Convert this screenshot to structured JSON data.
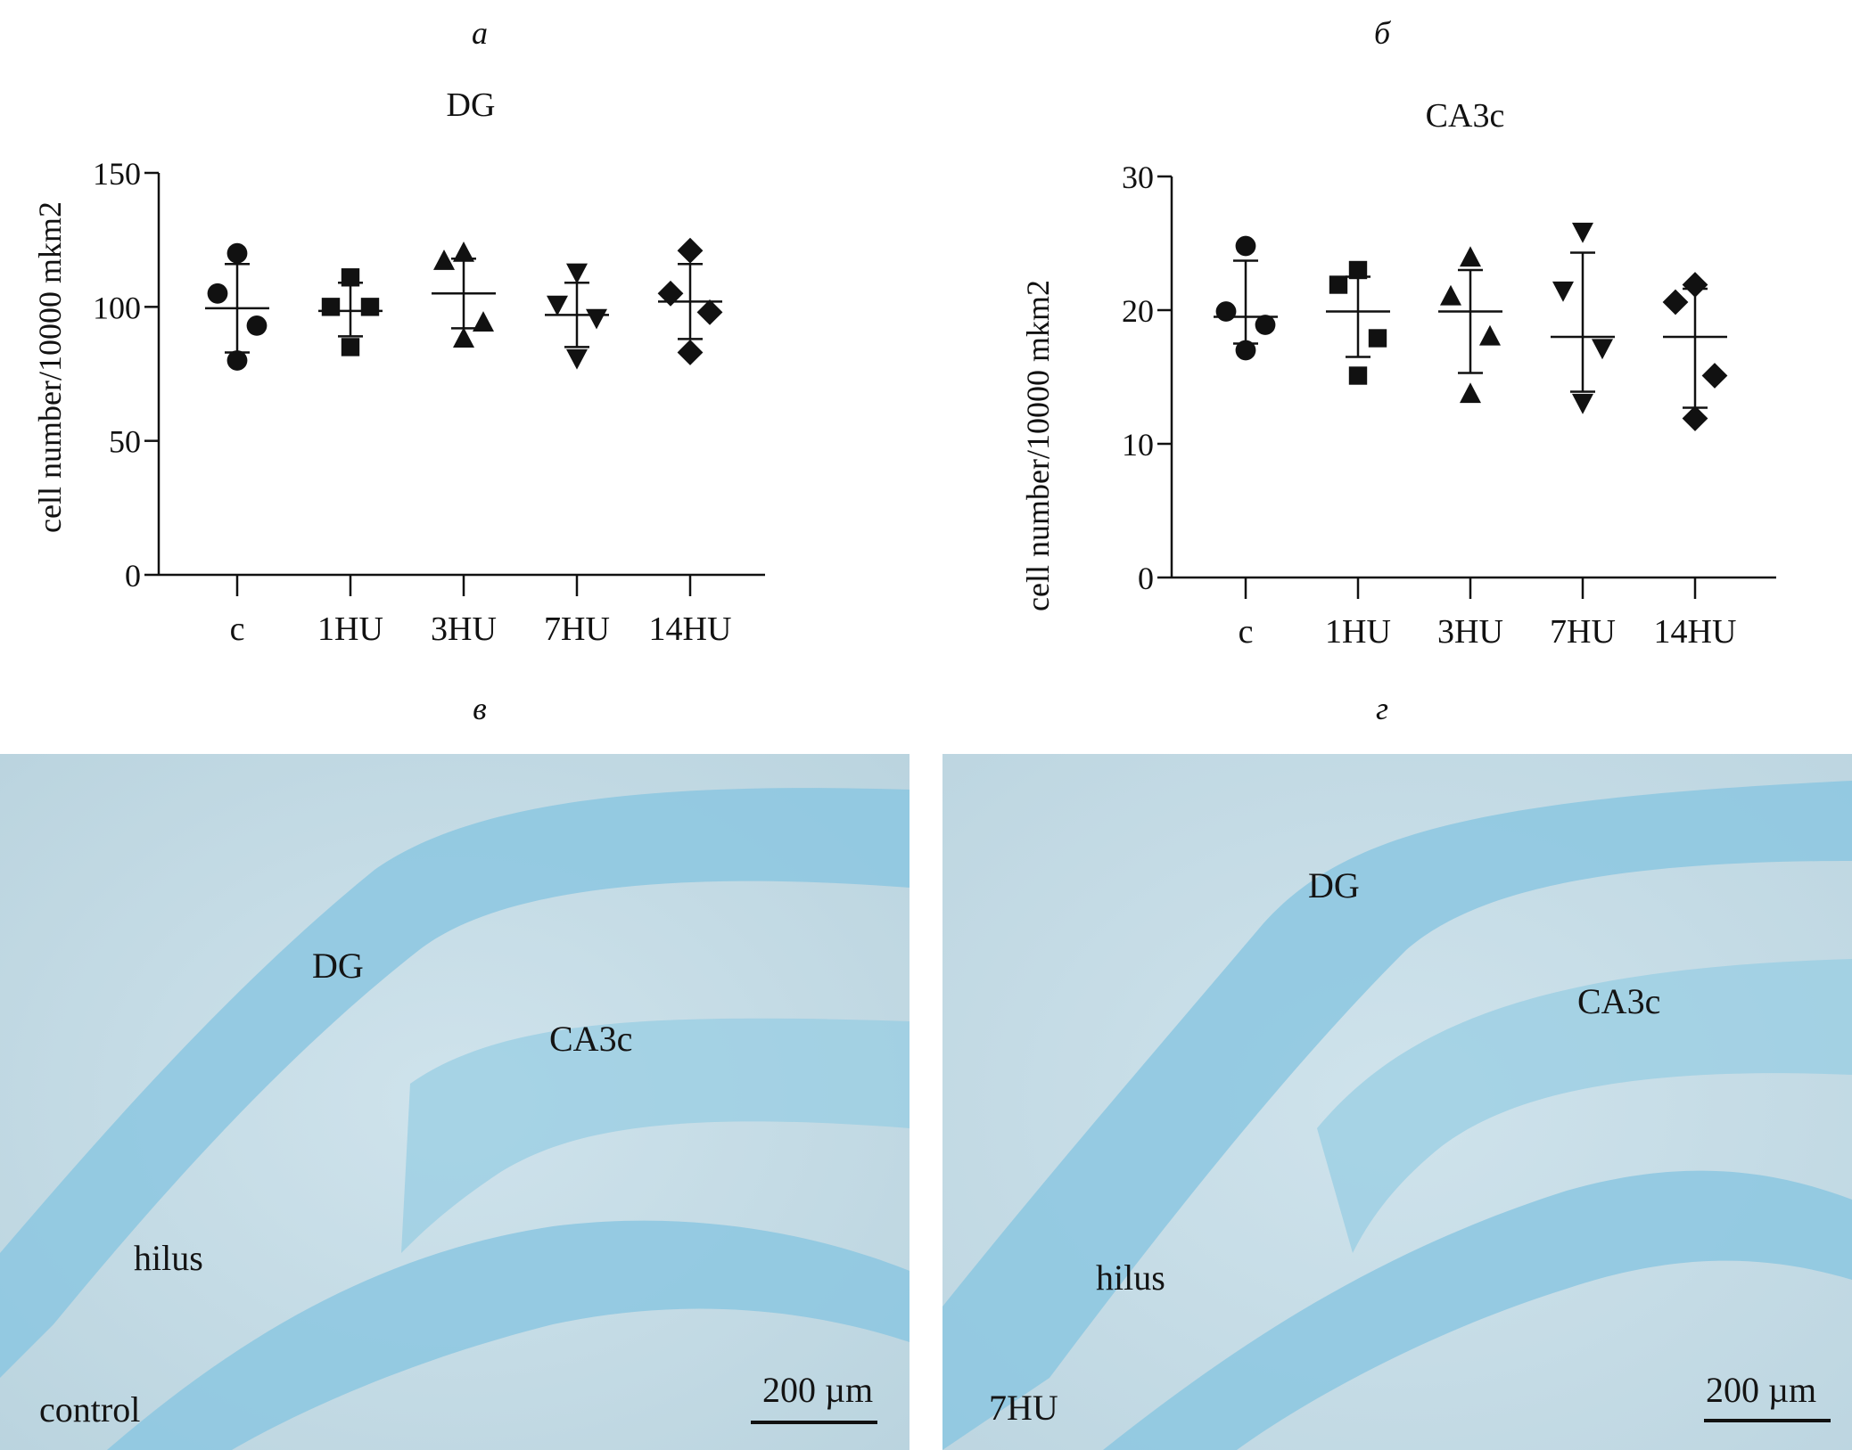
{
  "panel_letters": {
    "a": "а",
    "b": "б",
    "c": "в",
    "d": "г"
  },
  "chart_data": [
    {
      "type": "scatter",
      "title": "DG",
      "ylabel": "cell number/10000 mkm2",
      "xlabel": "",
      "categories": [
        "c",
        "1HU",
        "3HU",
        "7HU",
        "14HU"
      ],
      "ylim": [
        0,
        150
      ],
      "yticks": [
        0,
        50,
        100,
        150
      ],
      "grid": false,
      "markers": [
        "circle",
        "square",
        "triangle-up",
        "triangle-down",
        "diamond"
      ],
      "groups": [
        {
          "category": "c",
          "points": [
            120,
            105,
            93,
            80
          ],
          "mean": 99.5,
          "sd_low": 83,
          "sd_high": 116
        },
        {
          "category": "1HU",
          "points": [
            111,
            100,
            100,
            85
          ],
          "mean": 98.5,
          "sd_low": 89,
          "sd_high": 109
        },
        {
          "category": "3HU",
          "points": [
            120,
            117,
            94,
            88
          ],
          "mean": 105,
          "sd_low": 92,
          "sd_high": 118
        },
        {
          "category": "7HU",
          "points": [
            113,
            101,
            96,
            81
          ],
          "mean": 97,
          "sd_low": 85,
          "sd_high": 109
        },
        {
          "category": "14HU",
          "points": [
            121,
            105,
            98,
            83
          ],
          "mean": 102,
          "sd_low": 88,
          "sd_high": 116
        }
      ]
    },
    {
      "type": "scatter",
      "title": "CA3c",
      "ylabel": "cell number/10000 mkm2",
      "xlabel": "",
      "categories": [
        "c",
        "1HU",
        "3HU",
        "7HU",
        "14HU"
      ],
      "ylim": [
        0,
        30
      ],
      "yticks": [
        0,
        10,
        20,
        30
      ],
      "grid": false,
      "markers": [
        "circle",
        "square",
        "triangle-up",
        "triangle-down",
        "diamond"
      ],
      "groups": [
        {
          "category": "c",
          "points": [
            24.8,
            19.9,
            18.9,
            17.0
          ],
          "mean": 19.5,
          "sd_low": 17.5,
          "sd_high": 23.7
        },
        {
          "category": "1HU",
          "points": [
            23.0,
            21.9,
            17.9,
            15.1
          ],
          "mean": 19.9,
          "sd_low": 16.5,
          "sd_high": 22.5
        },
        {
          "category": "3HU",
          "points": [
            23.9,
            21.0,
            18.0,
            13.7
          ],
          "mean": 19.9,
          "sd_low": 15.3,
          "sd_high": 23.0
        },
        {
          "category": "7HU",
          "points": [
            25.9,
            21.5,
            17.2,
            13.1
          ],
          "mean": 18.0,
          "sd_low": 13.9,
          "sd_high": 24.3
        },
        {
          "category": "14HU",
          "points": [
            21.9,
            20.6,
            15.1,
            11.9
          ],
          "mean": 18.0,
          "sd_low": 12.7,
          "sd_high": 21.6
        }
      ]
    }
  ],
  "micrographs": [
    {
      "labels": {
        "region1": "DG",
        "region2": "CA3c",
        "region3": "hilus",
        "condition": "control"
      },
      "scale": "200 µm"
    },
    {
      "labels": {
        "region1": "DG",
        "region2": "CA3c",
        "region3": "hilus",
        "condition": "7HU"
      },
      "scale": "200 µm"
    }
  ],
  "colors": {
    "ink": "#111111",
    "tissue_bg": "#c6dce6",
    "stain": "#4fb0d8"
  }
}
